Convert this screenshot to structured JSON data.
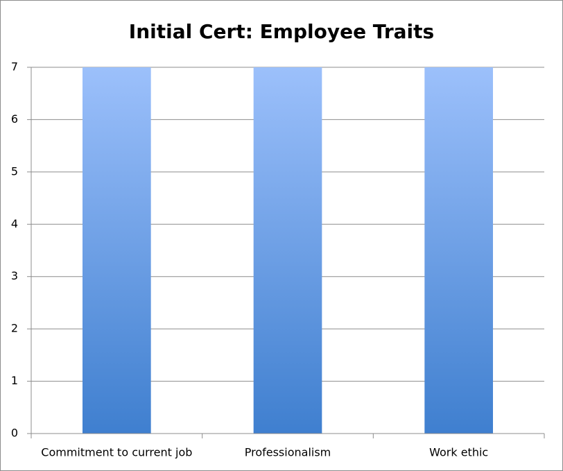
{
  "chart_data": {
    "type": "bar",
    "title": "Initial Cert: Employee Traits",
    "categories": [
      "Commitment to current job",
      "Professionalism",
      "Work ethic"
    ],
    "values": [
      7,
      7,
      7
    ],
    "gradient": [
      "#9cc0fb",
      "#3f7fcf"
    ],
    "ylim": [
      0,
      7
    ],
    "yticks": [
      0,
      1,
      2,
      3,
      4,
      5,
      6,
      7
    ],
    "grid": true
  }
}
